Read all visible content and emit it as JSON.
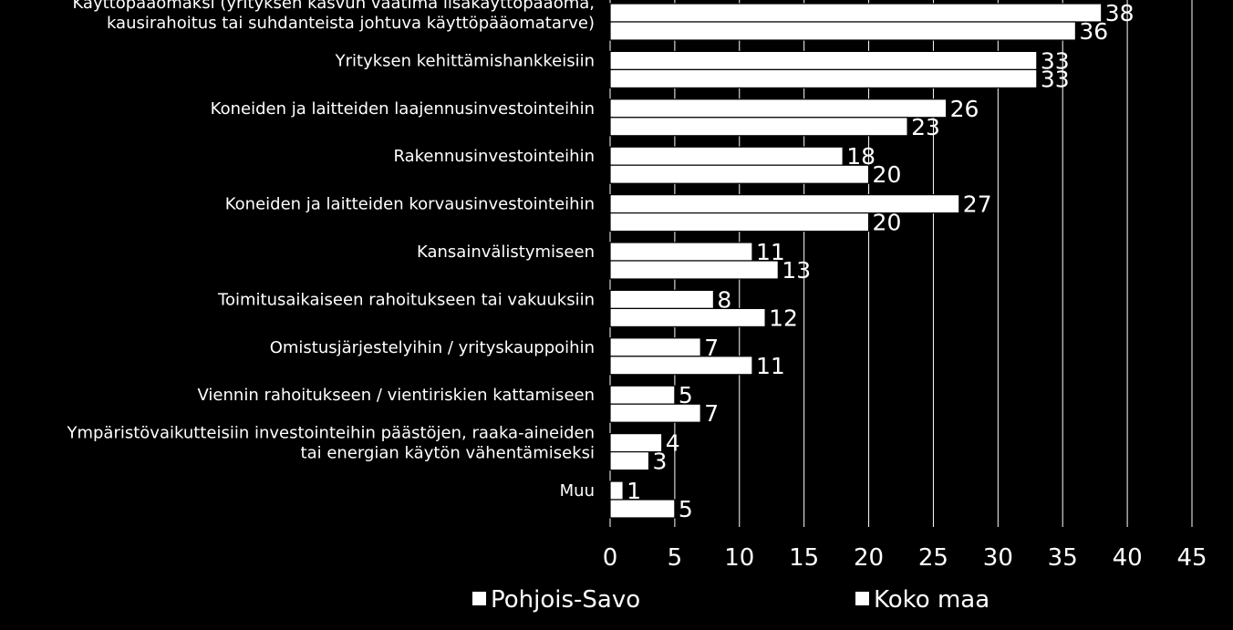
{
  "chart_data": {
    "type": "bar",
    "orientation": "horizontal",
    "categories": [
      [
        "Käyttöpääomaksi (yrityksen kasvun vaatima lisäkäyttöpääoma,",
        "kausirahoitus tai suhdanteista johtuva käyttöpääomatarve)"
      ],
      [
        "Yrityksen kehittämishankkeisiin"
      ],
      [
        "Koneiden ja laitteiden laajennusinvestointeihin"
      ],
      [
        "Rakennusinvestointeihin"
      ],
      [
        "Koneiden ja laitteiden korvausinvestointeihin"
      ],
      [
        "Kansainvälistymiseen"
      ],
      [
        "Toimitusaikaiseen rahoitukseen tai vakuuksiin"
      ],
      [
        "Omistusjärjestelyihin / yrityskauppoihin"
      ],
      [
        "Viennin rahoitukseen / vientiriskien kattamiseen"
      ],
      [
        "Ympäristövaikutteisiin investointeihin päästöjen, raaka-aineiden",
        "tai energian käytön vähentämiseksi"
      ],
      [
        "Muu"
      ]
    ],
    "series": [
      {
        "name": "Pohjois-Savo",
        "values": [
          38,
          33,
          26,
          18,
          27,
          11,
          8,
          7,
          5,
          4,
          1
        ]
      },
      {
        "name": "Koko maa",
        "values": [
          36,
          33,
          23,
          20,
          20,
          13,
          12,
          11,
          7,
          3,
          5
        ]
      }
    ],
    "xlim": [
      0,
      45
    ],
    "xticks": [
      0,
      5,
      10,
      15,
      20,
      25,
      30,
      35,
      40,
      45
    ],
    "grid": true,
    "legend_position": "bottom",
    "colors": {
      "background": "#000000",
      "bars": "#ffffff",
      "text": "#ffffff"
    }
  }
}
